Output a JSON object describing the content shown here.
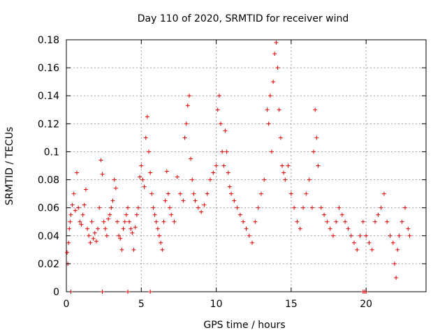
{
  "chart_data": {
    "type": "scatter",
    "title": "Day 110 of 2020, SRMTID for receiver wind",
    "xlabel": "GPS time / hours",
    "ylabel": "SRMTID / TECUs",
    "xlim": [
      0,
      24
    ],
    "ylim": [
      0,
      0.18
    ],
    "x_ticks": [
      0,
      5,
      10,
      15,
      20
    ],
    "y_ticks": [
      0,
      0.02,
      0.04,
      0.06,
      0.08,
      0.1,
      0.12,
      0.14,
      0.16,
      0.18
    ],
    "x_tick_labels": [
      "0",
      "5",
      "10",
      "15",
      "20"
    ],
    "y_tick_labels": [
      "0",
      "0.02",
      "0.04",
      "0.06",
      "0.08",
      "0.1",
      "0.12",
      "0.14",
      "0.16",
      "0.18"
    ],
    "grid": true,
    "marker": "+",
    "color": "#e00000",
    "series": [
      {
        "name": "SRMTID",
        "points": [
          [
            0.05,
            0.028
          ],
          [
            0.1,
            0.02
          ],
          [
            0.15,
            0.035
          ],
          [
            0.2,
            0.045
          ],
          [
            0.25,
            0.05
          ],
          [
            0.3,
            0.055
          ],
          [
            0.4,
            0.062
          ],
          [
            0.5,
            0.07
          ],
          [
            0.6,
            0.058
          ],
          [
            0.7,
            0.085
          ],
          [
            0.8,
            0.06
          ],
          [
            0.9,
            0.05
          ],
          [
            1.0,
            0.048
          ],
          [
            1.1,
            0.055
          ],
          [
            1.2,
            0.062
          ],
          [
            1.3,
            0.073
          ],
          [
            1.4,
            0.045
          ],
          [
            1.5,
            0.04
          ],
          [
            1.6,
            0.035
          ],
          [
            1.7,
            0.05
          ],
          [
            1.8,
            0.038
          ],
          [
            1.9,
            0.042
          ],
          [
            2.0,
            0.036
          ],
          [
            2.1,
            0.045
          ],
          [
            2.2,
            0.06
          ],
          [
            2.3,
            0.094
          ],
          [
            2.4,
            0.084
          ],
          [
            2.5,
            0.05
          ],
          [
            2.6,
            0.045
          ],
          [
            2.7,
            0.04
          ],
          [
            2.8,
            0.052
          ],
          [
            2.9,
            0.055
          ],
          [
            3.0,
            0.06
          ],
          [
            3.1,
            0.065
          ],
          [
            3.2,
            0.08
          ],
          [
            3.3,
            0.074
          ],
          [
            3.4,
            0.05
          ],
          [
            3.5,
            0.04
          ],
          [
            3.6,
            0.038
          ],
          [
            3.7,
            0.03
          ],
          [
            3.8,
            0.045
          ],
          [
            3.9,
            0.05
          ],
          [
            4.0,
            0.055
          ],
          [
            4.1,
            0.06
          ],
          [
            4.2,
            0.05
          ],
          [
            4.3,
            0.045
          ],
          [
            4.4,
            0.042
          ],
          [
            4.5,
            0.03
          ],
          [
            4.6,
            0.046
          ],
          [
            4.7,
            0.055
          ],
          [
            4.8,
            0.06
          ],
          [
            4.9,
            0.082
          ],
          [
            5.0,
            0.09
          ],
          [
            5.1,
            0.08
          ],
          [
            5.2,
            0.075
          ],
          [
            5.3,
            0.11
          ],
          [
            5.4,
            0.125
          ],
          [
            5.5,
            0.1
          ],
          [
            5.6,
            0.085
          ],
          [
            5.7,
            0.07
          ],
          [
            5.8,
            0.06
          ],
          [
            5.9,
            0.055
          ],
          [
            6.0,
            0.05
          ],
          [
            6.1,
            0.045
          ],
          [
            6.2,
            0.04
          ],
          [
            6.3,
            0.035
          ],
          [
            6.4,
            0.03
          ],
          [
            6.5,
            0.05
          ],
          [
            6.6,
            0.065
          ],
          [
            6.7,
            0.086
          ],
          [
            6.8,
            0.07
          ],
          [
            6.9,
            0.06
          ],
          [
            7.0,
            0.055
          ],
          [
            7.2,
            0.05
          ],
          [
            7.4,
            0.082
          ],
          [
            7.6,
            0.07
          ],
          [
            7.8,
            0.065
          ],
          [
            7.9,
            0.11
          ],
          [
            8.0,
            0.12
          ],
          [
            8.1,
            0.133
          ],
          [
            8.2,
            0.14
          ],
          [
            8.3,
            0.095
          ],
          [
            8.4,
            0.08
          ],
          [
            8.5,
            0.07
          ],
          [
            8.6,
            0.065
          ],
          [
            8.8,
            0.06
          ],
          [
            9.0,
            0.057
          ],
          [
            9.2,
            0.062
          ],
          [
            9.4,
            0.07
          ],
          [
            9.6,
            0.08
          ],
          [
            9.8,
            0.085
          ],
          [
            10.0,
            0.09
          ],
          [
            10.1,
            0.13
          ],
          [
            10.2,
            0.14
          ],
          [
            10.3,
            0.12
          ],
          [
            10.4,
            0.1
          ],
          [
            10.5,
            0.09
          ],
          [
            10.6,
            0.115
          ],
          [
            10.7,
            0.1
          ],
          [
            10.8,
            0.085
          ],
          [
            10.9,
            0.075
          ],
          [
            11.0,
            0.07
          ],
          [
            11.2,
            0.065
          ],
          [
            11.4,
            0.06
          ],
          [
            11.6,
            0.055
          ],
          [
            11.8,
            0.05
          ],
          [
            12.0,
            0.045
          ],
          [
            12.2,
            0.04
          ],
          [
            12.4,
            0.035
          ],
          [
            12.6,
            0.05
          ],
          [
            12.8,
            0.06
          ],
          [
            13.0,
            0.07
          ],
          [
            13.2,
            0.08
          ],
          [
            13.4,
            0.13
          ],
          [
            13.5,
            0.12
          ],
          [
            13.6,
            0.14
          ],
          [
            13.7,
            0.1
          ],
          [
            13.8,
            0.15
          ],
          [
            13.9,
            0.17
          ],
          [
            14.0,
            0.178
          ],
          [
            14.1,
            0.16
          ],
          [
            14.2,
            0.13
          ],
          [
            14.3,
            0.11
          ],
          [
            14.4,
            0.09
          ],
          [
            14.5,
            0.085
          ],
          [
            14.6,
            0.08
          ],
          [
            14.8,
            0.09
          ],
          [
            15.0,
            0.07
          ],
          [
            15.2,
            0.06
          ],
          [
            15.4,
            0.05
          ],
          [
            15.6,
            0.045
          ],
          [
            15.8,
            0.06
          ],
          [
            16.0,
            0.07
          ],
          [
            16.2,
            0.08
          ],
          [
            16.4,
            0.06
          ],
          [
            16.5,
            0.1
          ],
          [
            16.6,
            0.13
          ],
          [
            16.7,
            0.11
          ],
          [
            16.8,
            0.09
          ],
          [
            17.0,
            0.06
          ],
          [
            17.2,
            0.055
          ],
          [
            17.4,
            0.05
          ],
          [
            17.6,
            0.045
          ],
          [
            17.8,
            0.04
          ],
          [
            18.0,
            0.05
          ],
          [
            18.2,
            0.06
          ],
          [
            18.4,
            0.055
          ],
          [
            18.6,
            0.05
          ],
          [
            18.8,
            0.045
          ],
          [
            19.0,
            0.04
          ],
          [
            19.2,
            0.035
          ],
          [
            19.4,
            0.03
          ],
          [
            19.6,
            0.04
          ],
          [
            19.8,
            0.05
          ],
          [
            20.0,
            0.04
          ],
          [
            20.2,
            0.035
          ],
          [
            20.4,
            0.03
          ],
          [
            20.6,
            0.05
          ],
          [
            20.8,
            0.055
          ],
          [
            21.0,
            0.06
          ],
          [
            21.2,
            0.07
          ],
          [
            21.4,
            0.05
          ],
          [
            21.6,
            0.04
          ],
          [
            21.8,
            0.035
          ],
          [
            21.9,
            0.02
          ],
          [
            22.0,
            0.01
          ],
          [
            22.1,
            0.03
          ],
          [
            22.2,
            0.04
          ],
          [
            22.4,
            0.05
          ],
          [
            22.6,
            0.06
          ],
          [
            22.8,
            0.045
          ],
          [
            22.9,
            0.04
          ]
        ]
      }
    ],
    "zero_markers_x": [
      0.3,
      2.4,
      4.1,
      5.6,
      19.8,
      19.9,
      20.0
    ]
  }
}
